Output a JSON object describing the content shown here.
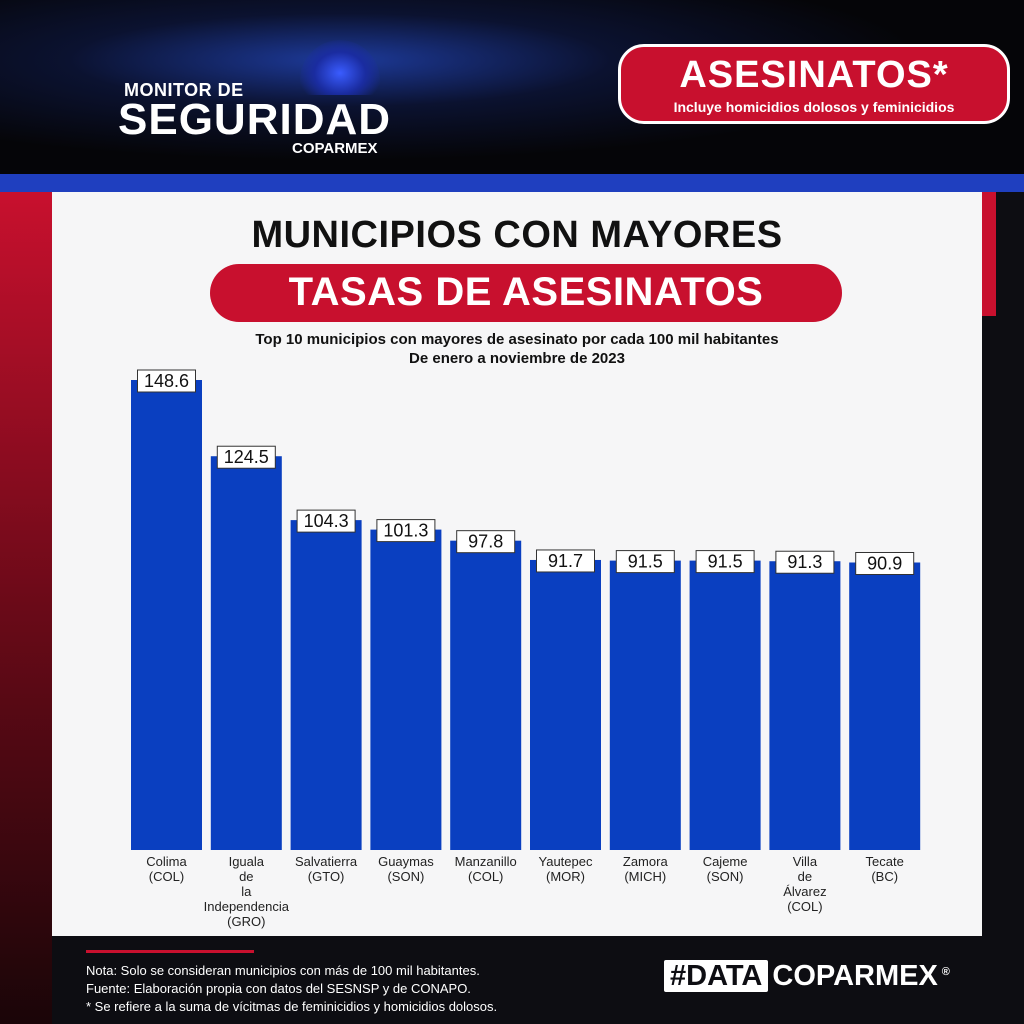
{
  "header": {
    "logo_line1": "MONITOR DE",
    "logo_line2": "SEGURIDAD",
    "logo_line3": "COPARMEX",
    "badge_title": "ASESINATOS*",
    "badge_subtitle": "Incluye homicidios dolosos y feminicidios"
  },
  "titles": {
    "line1": "MUNICIPIOS CON MAYORES",
    "line2": "TASAS DE ASESINATOS",
    "subtitle1": "Top 10 municipios con mayores de asesinato por cada 100 mil habitantes",
    "subtitle2": "De enero a noviembre de 2023"
  },
  "colors": {
    "bar": "#0a3fc0",
    "accent_red": "#c8102e",
    "label_bg": "#ffffff",
    "text": "#111111"
  },
  "chart_data": {
    "type": "bar",
    "title": "MUNICIPIOS CON MAYORES TASAS DE ASESINATOS",
    "subtitle": "Top 10 municipios con mayores de asesinato por cada 100 mil habitantes",
    "xlabel": "",
    "ylabel": "",
    "ylim": [
      0,
      148.6
    ],
    "grid": false,
    "legend": "none",
    "categories": [
      [
        "Colima",
        "(COL)"
      ],
      [
        "Iguala",
        "de",
        "la",
        "Independencia",
        "(GRO)"
      ],
      [
        "Salvatierra",
        "(GTO)"
      ],
      [
        "Guaymas",
        "(SON)"
      ],
      [
        "Manzanillo",
        "(COL)"
      ],
      [
        "Yautepec",
        "(MOR)"
      ],
      [
        "Zamora",
        "(MICH)"
      ],
      [
        "Cajeme",
        "(SON)"
      ],
      [
        "Villa",
        "de",
        "Álvarez",
        "(COL)"
      ],
      [
        "Tecate",
        "(BC)"
      ]
    ],
    "values": [
      148.6,
      124.5,
      104.3,
      101.3,
      97.8,
      91.7,
      91.5,
      91.5,
      91.3,
      90.9
    ],
    "value_labels": [
      "148.6",
      "124.5",
      "104.3",
      "101.3",
      "97.8",
      "91.7",
      "91.5",
      "91.5",
      "91.3",
      "90.9"
    ]
  },
  "footer": {
    "note1": "Nota: Solo se consideran municipios con más de 100 mil habitantes.",
    "note2": "Fuente: Elaboración propia con datos del SESNSP y de CONAPO.",
    "note3": "* Se refiere a la suma de vícitmas de feminicidios y homicidios dolosos.",
    "brand_box": "#DATA",
    "brand_text": "COPARMEX",
    "brand_reg": "®"
  }
}
